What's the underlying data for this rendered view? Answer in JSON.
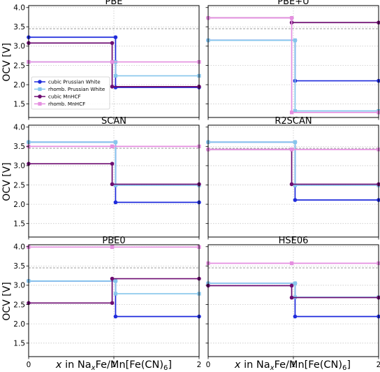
{
  "figure": {
    "ylabel": "OCV [V]",
    "xlabel_parts": [
      "x",
      " in Na",
      "x",
      "Fe/Mn[Fe(CN)",
      "6",
      "]"
    ],
    "legend": {
      "placement": "lower-left of first panel",
      "entries": [
        {
          "label": "cubic Prussian White",
          "color": "#1f2bdc",
          "marker": "circle"
        },
        {
          "label": "rhomb. Prussian White",
          "color": "#86c6ec",
          "marker": "square"
        },
        {
          "label": "cubic MnHCF",
          "color": "#6e0d72",
          "marker": "circle"
        },
        {
          "label": "rhomb. MnHCF",
          "color": "#e58fe0",
          "marker": "square"
        }
      ]
    }
  },
  "chart_data": [
    {
      "type": "line",
      "title": "PBE",
      "xlim": [
        0,
        2
      ],
      "ylim": [
        1.15,
        4.05
      ],
      "xticks": [
        "0",
        "1",
        "2"
      ],
      "yticks": [
        "1.5",
        "2.0",
        "2.5",
        "3.0",
        "3.5",
        "4.0"
      ],
      "reference_line": 3.45,
      "series": [
        {
          "name": "cubic Prussian White",
          "color": "#1f2bdc",
          "marker": "circle",
          "x_step": 1.02,
          "values": [
            3.23,
            1.93
          ]
        },
        {
          "name": "rhomb. Prussian White",
          "color": "#86c6ec",
          "marker": "square",
          "x_step": 1.02,
          "values": [
            2.59,
            2.23
          ]
        },
        {
          "name": "cubic MnHCF",
          "color": "#6e0d72",
          "marker": "circle",
          "x_step": 0.98,
          "values": [
            3.08,
            1.95
          ]
        },
        {
          "name": "rhomb. MnHCF",
          "color": "#e58fe0",
          "marker": "square",
          "x_step": 0.98,
          "values": [
            2.59,
            2.59
          ]
        }
      ]
    },
    {
      "type": "line",
      "title": "PBE+U",
      "xlim": [
        0,
        2
      ],
      "ylim": [
        1.15,
        4.05
      ],
      "xticks": [
        "0",
        "1",
        "2"
      ],
      "yticks": [
        "1.5",
        "2.0",
        "2.5",
        "3.0",
        "3.5",
        "4.0"
      ],
      "reference_line": 3.45,
      "series": [
        {
          "name": "cubic Prussian White",
          "color": "#1f2bdc",
          "marker": "circle",
          "x_step": 1.02,
          "values": [
            3.15,
            2.1
          ]
        },
        {
          "name": "rhomb. Prussian White",
          "color": "#86c6ec",
          "marker": "square",
          "x_step": 1.02,
          "values": [
            3.15,
            1.32
          ]
        },
        {
          "name": "cubic MnHCF",
          "color": "#6e0d72",
          "marker": "circle",
          "x_step": 0.98,
          "values": [
            3.73,
            3.61
          ]
        },
        {
          "name": "rhomb. MnHCF",
          "color": "#e58fe0",
          "marker": "square",
          "x_step": 0.98,
          "values": [
            3.73,
            1.28
          ]
        }
      ]
    },
    {
      "type": "line",
      "title": "SCAN",
      "xlim": [
        0,
        2
      ],
      "ylim": [
        1.15,
        4.05
      ],
      "xticks": [
        "0",
        "1",
        "2"
      ],
      "yticks": [
        "1.5",
        "2.0",
        "2.5",
        "3.0",
        "3.5",
        "4.0"
      ],
      "reference_line": 3.45,
      "series": [
        {
          "name": "cubic Prussian White",
          "color": "#1f2bdc",
          "marker": "circle",
          "x_step": 1.02,
          "values": [
            3.61,
            2.05
          ]
        },
        {
          "name": "rhomb. Prussian White",
          "color": "#86c6ec",
          "marker": "square",
          "x_step": 1.02,
          "values": [
            3.61,
            2.49
          ]
        },
        {
          "name": "cubic MnHCF",
          "color": "#6e0d72",
          "marker": "circle",
          "x_step": 0.98,
          "values": [
            3.05,
            2.52
          ]
        },
        {
          "name": "rhomb. MnHCF",
          "color": "#e58fe0",
          "marker": "square",
          "x_step": 0.98,
          "values": [
            3.5,
            3.5
          ]
        }
      ]
    },
    {
      "type": "line",
      "title": "R2SCAN",
      "xlim": [
        0,
        2
      ],
      "ylim": [
        1.15,
        4.05
      ],
      "xticks": [
        "0",
        "1",
        "2"
      ],
      "yticks": [
        "1.5",
        "2.0",
        "2.5",
        "3.0",
        "3.5",
        "4.0"
      ],
      "reference_line": 3.45,
      "series": [
        {
          "name": "cubic Prussian White",
          "color": "#1f2bdc",
          "marker": "circle",
          "x_step": 1.02,
          "values": [
            3.61,
            2.11
          ]
        },
        {
          "name": "rhomb. Prussian White",
          "color": "#86c6ec",
          "marker": "square",
          "x_step": 1.02,
          "values": [
            3.61,
            2.49
          ]
        },
        {
          "name": "cubic MnHCF",
          "color": "#6e0d72",
          "marker": "circle",
          "x_step": 0.98,
          "values": [
            3.42,
            2.52
          ]
        },
        {
          "name": "rhomb. MnHCF",
          "color": "#e58fe0",
          "marker": "square",
          "x_step": 0.98,
          "values": [
            3.42,
            3.42
          ]
        }
      ]
    },
    {
      "type": "line",
      "title": "PBE0",
      "xlim": [
        0,
        2
      ],
      "ylim": [
        1.15,
        4.05
      ],
      "xticks": [
        "0",
        "1",
        "2"
      ],
      "yticks": [
        "1.5",
        "2.0",
        "2.5",
        "3.0",
        "3.5",
        "4.0"
      ],
      "reference_line": 3.45,
      "series": [
        {
          "name": "cubic Prussian White",
          "color": "#1f2bdc",
          "marker": "circle",
          "x_step": 1.02,
          "values": [
            3.11,
            2.19
          ]
        },
        {
          "name": "rhomb. Prussian White",
          "color": "#86c6ec",
          "marker": "square",
          "x_step": 1.02,
          "values": [
            3.11,
            2.78
          ]
        },
        {
          "name": "cubic MnHCF",
          "color": "#6e0d72",
          "marker": "circle",
          "x_step": 0.98,
          "values": [
            2.54,
            3.17
          ]
        },
        {
          "name": "rhomb. MnHCF",
          "color": "#e58fe0",
          "marker": "square",
          "x_step": 0.98,
          "values": [
            3.99,
            3.99
          ]
        }
      ]
    },
    {
      "type": "line",
      "title": "HSE06",
      "xlim": [
        0,
        2
      ],
      "ylim": [
        1.15,
        4.05
      ],
      "xticks": [
        "0",
        "1",
        "2"
      ],
      "yticks": [
        "1.5",
        "2.0",
        "2.5",
        "3.0",
        "3.5",
        "4.0"
      ],
      "reference_line": 3.45,
      "series": [
        {
          "name": "cubic Prussian White",
          "color": "#1f2bdc",
          "marker": "circle",
          "x_step": 1.02,
          "values": [
            3.05,
            2.19
          ]
        },
        {
          "name": "rhomb. Prussian White",
          "color": "#86c6ec",
          "marker": "square",
          "x_step": 1.02,
          "values": [
            3.05,
            2.69
          ]
        },
        {
          "name": "cubic MnHCF",
          "color": "#6e0d72",
          "marker": "circle",
          "x_step": 0.98,
          "values": [
            2.99,
            2.68
          ]
        },
        {
          "name": "rhomb. MnHCF",
          "color": "#e58fe0",
          "marker": "square",
          "x_step": 0.98,
          "values": [
            3.57,
            3.57
          ]
        }
      ]
    }
  ]
}
